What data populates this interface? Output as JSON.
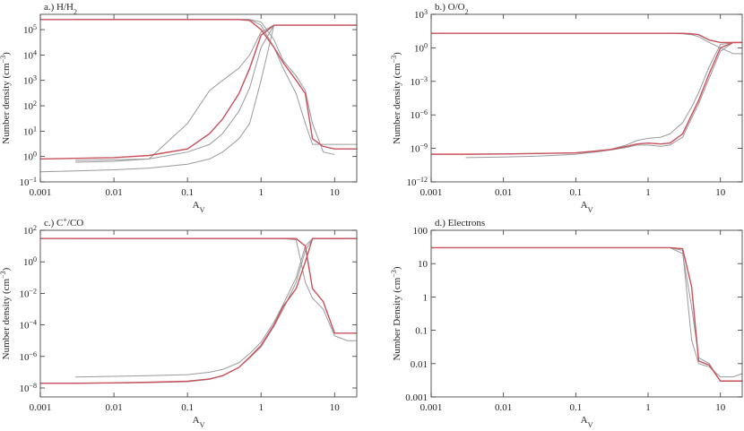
{
  "chart_data": [
    {
      "type": "line",
      "xscale": "log",
      "yscale": "log",
      "title": [
        {
          "text": "a.) H/H",
          "style": "none"
        },
        {
          "text": "2",
          "style": "sub"
        }
      ],
      "x_label": [
        {
          "text": "A",
          "style": "none"
        },
        {
          "text": "V",
          "style": "sub"
        }
      ],
      "y_label": [
        {
          "text": "Number density (cm",
          "style": "none"
        },
        {
          "text": "−3",
          "style": "sup"
        },
        {
          "text": ")",
          "style": "none"
        }
      ],
      "xlim": [
        0.001,
        20
      ],
      "xticks": [
        0.001,
        0.01,
        0.1,
        1,
        10
      ],
      "ylim": [
        0.1,
        400000
      ],
      "yticks": [
        {
          "value": 0.1,
          "label": "10",
          "exponent": "−1"
        },
        {
          "value": 1,
          "label": "10",
          "exponent": "0"
        },
        {
          "value": 10,
          "label": "10",
          "exponent": "1"
        },
        {
          "value": 100,
          "label": "10",
          "exponent": "2"
        },
        {
          "value": 1000,
          "label": "10",
          "exponent": "3"
        },
        {
          "value": 10000,
          "label": "10",
          "exponent": "4"
        },
        {
          "value": 100000,
          "label": "10",
          "exponent": "5"
        }
      ],
      "x": [
        0.001,
        0.003,
        0.01,
        0.03,
        0.1,
        0.2,
        0.3,
        0.5,
        0.7,
        1,
        1.5,
        2,
        3,
        4,
        5,
        7,
        10,
        15,
        20
      ],
      "series": [
        {
          "color": "#9a9a9a",
          "values": [
            null,
            0.7,
            0.75,
            0.8,
            1.5,
            3,
            8,
            60,
            500,
            20000,
            150000,
            150000,
            150000,
            150000,
            150000,
            150000,
            150000,
            150000,
            150000
          ]
        },
        {
          "color": "#9a9a9a",
          "values": [
            null,
            0.6,
            0.65,
            0.8,
            20,
            400,
            1000,
            3000,
            10000,
            80000,
            150000,
            150000,
            150000,
            150000,
            150000,
            150000,
            150000,
            150000,
            150000
          ]
        },
        {
          "color": "#9a9a9a",
          "values": [
            0.25,
            0.27,
            0.3,
            0.35,
            0.5,
            0.8,
            1.5,
            5,
            20,
            1000,
            150000,
            150000,
            150000,
            150000,
            150000,
            150000,
            150000,
            150000,
            150000
          ]
        },
        {
          "color": "#9a9a9a",
          "values": [
            null,
            250000,
            250000,
            250000,
            250000,
            250000,
            250000,
            250000,
            250000,
            150000,
            20000,
            3000,
            300,
            20,
            3,
            3,
            3,
            3,
            3
          ]
        },
        {
          "color": "#9a9a9a",
          "values": [
            null,
            250000,
            250000,
            250000,
            250000,
            250000,
            250000,
            250000,
            250000,
            200000,
            40000,
            6000,
            1500,
            400,
            20,
            1.5,
            1.2,
            null,
            null
          ]
        },
        {
          "color": "#c8505a",
          "values": [
            0.8,
            0.85,
            0.9,
            1.1,
            2,
            8,
            30,
            300,
            3000,
            60000,
            150000,
            150000,
            150000,
            150000,
            150000,
            150000,
            150000,
            150000,
            150000
          ]
        },
        {
          "color": "#c8505a",
          "values": [
            250000,
            250000,
            250000,
            250000,
            250000,
            250000,
            250000,
            250000,
            230000,
            100000,
            20000,
            5000,
            1000,
            300,
            5,
            2.5,
            2,
            2,
            2
          ]
        }
      ]
    },
    {
      "type": "line",
      "xscale": "log",
      "yscale": "log",
      "title": [
        {
          "text": "b.) O/O",
          "style": "none"
        },
        {
          "text": "2",
          "style": "sub"
        }
      ],
      "x_label": [
        {
          "text": "A",
          "style": "none"
        },
        {
          "text": "V",
          "style": "sub"
        }
      ],
      "y_label": [
        {
          "text": "Number density (cm",
          "style": "none"
        },
        {
          "text": "−3",
          "style": "sup"
        },
        {
          "text": ")",
          "style": "none"
        }
      ],
      "xlim": [
        0.001,
        20
      ],
      "xticks": [
        0.001,
        0.01,
        0.1,
        1,
        10
      ],
      "ylim": [
        1e-12,
        1000
      ],
      "yticks": [
        {
          "value": 1e-12,
          "label": "10",
          "exponent": "−12"
        },
        {
          "value": 1e-09,
          "label": "10",
          "exponent": "−9"
        },
        {
          "value": 1e-06,
          "label": "10",
          "exponent": "−6"
        },
        {
          "value": 0.001,
          "label": "10",
          "exponent": "−3"
        },
        {
          "value": 1,
          "label": "10",
          "exponent": "0"
        },
        {
          "value": 1000,
          "label": "10",
          "exponent": "3"
        }
      ],
      "x": [
        0.001,
        0.003,
        0.01,
        0.03,
        0.1,
        0.2,
        0.3,
        0.5,
        0.7,
        1,
        1.5,
        2,
        3,
        4,
        5,
        7,
        10,
        15,
        20
      ],
      "series": [
        {
          "color": "#9a9a9a",
          "values": [
            null,
            20,
            20,
            20,
            20,
            20,
            20,
            20,
            20,
            20,
            20,
            20,
            18,
            15,
            10,
            3,
            1,
            0.3,
            0.3
          ]
        },
        {
          "color": "#9a9a9a",
          "values": [
            null,
            1.5e-10,
            1.7e-10,
            2e-10,
            3e-10,
            5e-10,
            8e-10,
            2e-09,
            5e-09,
            8e-09,
            1e-08,
            2e-08,
            2e-07,
            5e-06,
            0.0001,
            0.02,
            2,
            3,
            3
          ]
        },
        {
          "color": "#9a9a9a",
          "values": [
            null,
            3e-10,
            3.2e-10,
            3.5e-10,
            4e-10,
            5e-10,
            7e-10,
            1.2e-09,
            2e-09,
            2e-09,
            1.5e-09,
            2e-09,
            1e-08,
            5e-07,
            1e-05,
            0.002,
            0.5,
            3,
            3
          ]
        },
        {
          "color": "#c8505a",
          "values": [
            20,
            20,
            20,
            20,
            20,
            20,
            20,
            20,
            20,
            20,
            20,
            20,
            20,
            18,
            15,
            5,
            3,
            3,
            3
          ]
        },
        {
          "color": "#c8505a",
          "values": [
            3e-10,
            3e-10,
            3.2e-10,
            3.5e-10,
            4e-10,
            6e-10,
            8e-10,
            1.5e-09,
            2.5e-09,
            3e-09,
            2.5e-09,
            3e-09,
            2e-08,
            1e-06,
            2e-05,
            0.005,
            1,
            3,
            3
          ]
        }
      ]
    },
    {
      "type": "line",
      "xscale": "log",
      "yscale": "log",
      "title": [
        {
          "text": "c.) C",
          "style": "none"
        },
        {
          "text": "+",
          "style": "sup"
        },
        {
          "text": "/CO",
          "style": "none"
        }
      ],
      "x_label": [
        {
          "text": "A",
          "style": "none"
        },
        {
          "text": "V",
          "style": "sub"
        }
      ],
      "y_label": [
        {
          "text": "Number density (cm",
          "style": "none"
        },
        {
          "text": "−3",
          "style": "sup"
        },
        {
          "text": ")",
          "style": "none"
        }
      ],
      "xlim": [
        0.001,
        20
      ],
      "xticks": [
        0.001,
        0.01,
        0.1,
        1,
        10
      ],
      "ylim": [
        2.7e-09,
        100
      ],
      "yticks": [
        {
          "value": 1e-08,
          "label": "10",
          "exponent": "−8"
        },
        {
          "value": 1e-06,
          "label": "10",
          "exponent": "−6"
        },
        {
          "value": 0.0001,
          "label": "10",
          "exponent": "−4"
        },
        {
          "value": 0.01,
          "label": "10",
          "exponent": "−2"
        },
        {
          "value": 1,
          "label": "10",
          "exponent": "0"
        },
        {
          "value": 100,
          "label": "10",
          "exponent": "2"
        }
      ],
      "x": [
        0.001,
        0.003,
        0.01,
        0.03,
        0.1,
        0.2,
        0.3,
        0.5,
        0.7,
        1,
        1.5,
        2,
        3,
        4,
        5,
        7,
        10,
        15,
        20
      ],
      "series": [
        {
          "color": "#9a9a9a",
          "values": [
            null,
            5e-08,
            5.5e-08,
            6e-08,
            7e-08,
            1e-07,
            1.5e-07,
            4e-07,
            1.5e-06,
            8e-06,
            0.00015,
            0.002,
            0.1,
            10,
            30,
            30,
            30,
            30,
            30
          ]
        },
        {
          "color": "#9a9a9a",
          "values": [
            2e-08,
            2e-08,
            2.1e-08,
            2.2e-08,
            2.5e-08,
            3.5e-08,
            6e-08,
            2e-07,
            8e-07,
            4e-06,
            8e-05,
            0.001,
            0.05,
            5,
            30,
            30,
            30,
            30,
            30
          ]
        },
        {
          "color": "#9a9a9a",
          "values": [
            null,
            30,
            30,
            30,
            30,
            30,
            30,
            30,
            30,
            30,
            30,
            30,
            25,
            0.05,
            0.005,
            0.001,
            2e-05,
            1e-05,
            1e-05
          ]
        },
        {
          "color": "#c8505a",
          "values": [
            2e-08,
            2e-08,
            2.1e-08,
            2.3e-08,
            2.7e-08,
            3.7e-08,
            6e-08,
            2e-07,
            9e-07,
            5e-06,
            0.0001,
            0.0015,
            0.02,
            1,
            30,
            30,
            30,
            30,
            30
          ]
        },
        {
          "color": "#c8505a",
          "values": [
            30,
            30,
            30,
            30,
            30,
            30,
            30,
            30,
            30,
            30,
            30,
            30,
            30,
            10,
            0.02,
            0.003,
            3e-05,
            3e-05,
            3e-05
          ]
        }
      ]
    },
    {
      "type": "line",
      "xscale": "log",
      "yscale": "log",
      "title": [
        {
          "text": "d.) Electrons",
          "style": "none"
        }
      ],
      "x_label": [
        {
          "text": "A",
          "style": "none"
        },
        {
          "text": "V",
          "style": "sub"
        }
      ],
      "y_label": [
        {
          "text": "Number Density (cm",
          "style": "none"
        },
        {
          "text": "−3",
          "style": "sup"
        },
        {
          "text": ")",
          "style": "none"
        }
      ],
      "xlim": [
        0.001,
        20
      ],
      "xticks": [
        0.001,
        0.01,
        0.1,
        1,
        10
      ],
      "ylim": [
        0.001,
        100
      ],
      "yticks": [
        0.001,
        0.01,
        0.1,
        1,
        10,
        100
      ],
      "x": [
        0.001,
        0.003,
        0.01,
        0.03,
        0.1,
        0.2,
        0.3,
        0.5,
        0.7,
        1,
        1.5,
        2,
        3,
        4,
        5,
        7,
        10,
        15,
        20
      ],
      "series": [
        {
          "color": "#9a9a9a",
          "values": [
            null,
            30,
            30,
            30,
            30,
            30,
            30,
            30,
            30,
            30,
            30,
            30,
            25,
            0.05,
            0.01,
            0.008,
            0.004,
            0.004,
            0.005
          ]
        },
        {
          "color": "#9a9a9a",
          "values": [
            30,
            30,
            30,
            30,
            30,
            30,
            30,
            30,
            30,
            30,
            30,
            30,
            20,
            0.5,
            0.015,
            0.01,
            0.003,
            0.003,
            0.003
          ]
        },
        {
          "color": "#c8505a",
          "values": [
            30,
            30,
            30,
            30,
            30,
            30,
            30,
            30,
            30,
            30,
            30,
            30,
            28,
            2,
            0.012,
            0.009,
            0.003,
            0.003,
            0.003
          ]
        }
      ]
    }
  ]
}
